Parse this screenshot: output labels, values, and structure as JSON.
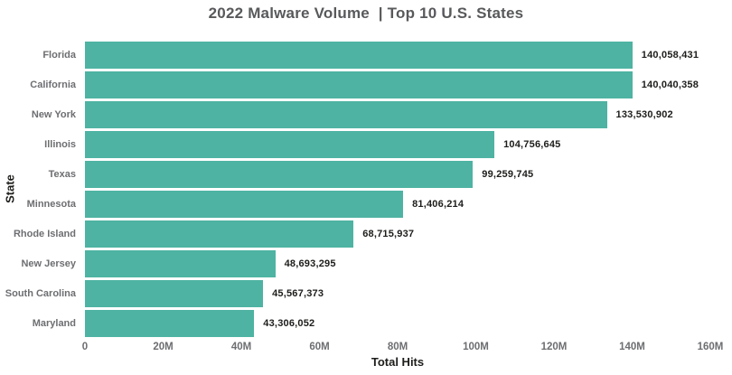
{
  "title": "2022 Malware Volume  | Top 10 U.S. States",
  "colors": {
    "bar": "#4eb3a2",
    "title_text": "#58595b",
    "category_text": "#6d6e71",
    "tick_text": "#6d6e71",
    "value_text": "#1d1d1b",
    "background": "#ffffff"
  },
  "chart_data": {
    "type": "bar",
    "orientation": "horizontal",
    "title": "2022 Malware Volume  | Top 10 U.S. States",
    "xlabel": "Total Hits",
    "ylabel": "State",
    "categories": [
      "Florida",
      "California",
      "New York",
      "Illinois",
      "Texas",
      "Minnesota",
      "Rhode Island",
      "New Jersey",
      "South Carolina",
      "Maryland"
    ],
    "values": [
      140058431,
      140040358,
      133530902,
      104756645,
      99259745,
      81406214,
      68715937,
      48693295,
      45567373,
      43306052
    ],
    "value_labels": [
      "140,058,431",
      "140,040,358",
      "133,530,902",
      "104,756,645",
      "99,259,745",
      "81,406,214",
      "68,715,937",
      "48,693,295",
      "45,567,373",
      "43,306,052"
    ],
    "xlim": [
      0,
      160000000
    ],
    "xticks": [
      {
        "value": 0,
        "label": "0"
      },
      {
        "value": 20000000,
        "label": "20M"
      },
      {
        "value": 40000000,
        "label": "40M"
      },
      {
        "value": 60000000,
        "label": "60M"
      },
      {
        "value": 80000000,
        "label": "80M"
      },
      {
        "value": 100000000,
        "label": "100M"
      },
      {
        "value": 120000000,
        "label": "120M"
      },
      {
        "value": 140000000,
        "label": "140M"
      },
      {
        "value": 160000000,
        "label": "160M"
      }
    ],
    "grid": false,
    "legend": false
  }
}
